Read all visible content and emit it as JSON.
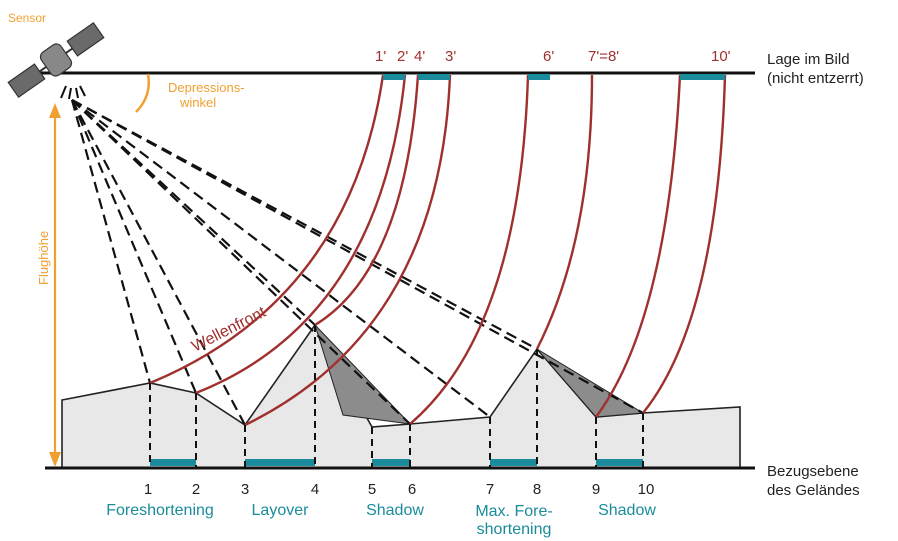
{
  "colors": {
    "terrain_fill": "#e8e8e8",
    "shadow_fill": "#8c8c8c",
    "wavefront": "#a0302e",
    "segment": "#1a8c9c",
    "sensor_label": "#f0a030",
    "axis": "#111111"
  },
  "sensor": {
    "label": "Sensor",
    "icon": "satellite-icon"
  },
  "depression": {
    "line1": "Depressions-",
    "line2": "winkel"
  },
  "flight_height": {
    "label": "Flughöhe"
  },
  "wavefront_label": "Wellenfront",
  "image_plane": {
    "line1": "Lage im Bild",
    "line2": "(nicht entzerrt)"
  },
  "ground_plane": {
    "line1": "Bezugsebene",
    "line2": "des Geländes"
  },
  "image_points": [
    "1'",
    "2'",
    "4'",
    "3'",
    "6'",
    "7'=8'",
    "10'"
  ],
  "ground_points": [
    "1",
    "2",
    "3",
    "4",
    "5",
    "6",
    "7",
    "8",
    "9",
    "10"
  ],
  "effects": {
    "foreshortening": "Foreshortening",
    "layover": "Layover",
    "shadow1": "Shadow",
    "max_fore_1": "Max. Fore-",
    "max_fore_2": "shortening",
    "shadow2": "Shadow"
  }
}
